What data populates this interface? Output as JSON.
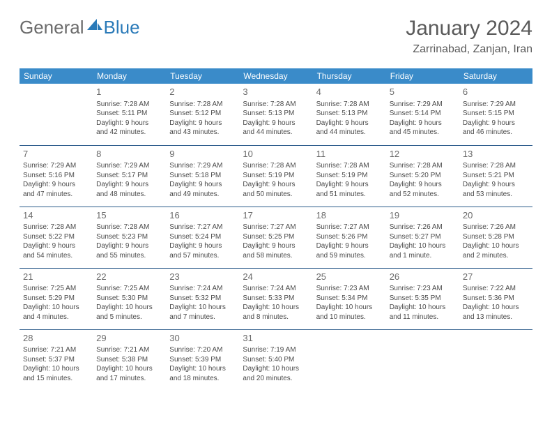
{
  "logo": {
    "part1": "General",
    "part2": "Blue"
  },
  "title": "January 2024",
  "location": "Zarrinabad, Zanjan, Iran",
  "day_headers": [
    "Sunday",
    "Monday",
    "Tuesday",
    "Wednesday",
    "Thursday",
    "Friday",
    "Saturday"
  ],
  "colors": {
    "header_bg": "#3a8bc9",
    "header_fg": "#ffffff",
    "row_border": "#2a5a8a",
    "logo_gray": "#6b6b6b",
    "logo_blue": "#2a7ab8",
    "text": "#4a4a4a"
  },
  "weeks": [
    [
      {
        "day": "",
        "sunrise": "",
        "sunset": "",
        "daylight1": "",
        "daylight2": ""
      },
      {
        "day": "1",
        "sunrise": "Sunrise: 7:28 AM",
        "sunset": "Sunset: 5:11 PM",
        "daylight1": "Daylight: 9 hours",
        "daylight2": "and 42 minutes."
      },
      {
        "day": "2",
        "sunrise": "Sunrise: 7:28 AM",
        "sunset": "Sunset: 5:12 PM",
        "daylight1": "Daylight: 9 hours",
        "daylight2": "and 43 minutes."
      },
      {
        "day": "3",
        "sunrise": "Sunrise: 7:28 AM",
        "sunset": "Sunset: 5:13 PM",
        "daylight1": "Daylight: 9 hours",
        "daylight2": "and 44 minutes."
      },
      {
        "day": "4",
        "sunrise": "Sunrise: 7:28 AM",
        "sunset": "Sunset: 5:13 PM",
        "daylight1": "Daylight: 9 hours",
        "daylight2": "and 44 minutes."
      },
      {
        "day": "5",
        "sunrise": "Sunrise: 7:29 AM",
        "sunset": "Sunset: 5:14 PM",
        "daylight1": "Daylight: 9 hours",
        "daylight2": "and 45 minutes."
      },
      {
        "day": "6",
        "sunrise": "Sunrise: 7:29 AM",
        "sunset": "Sunset: 5:15 PM",
        "daylight1": "Daylight: 9 hours",
        "daylight2": "and 46 minutes."
      }
    ],
    [
      {
        "day": "7",
        "sunrise": "Sunrise: 7:29 AM",
        "sunset": "Sunset: 5:16 PM",
        "daylight1": "Daylight: 9 hours",
        "daylight2": "and 47 minutes."
      },
      {
        "day": "8",
        "sunrise": "Sunrise: 7:29 AM",
        "sunset": "Sunset: 5:17 PM",
        "daylight1": "Daylight: 9 hours",
        "daylight2": "and 48 minutes."
      },
      {
        "day": "9",
        "sunrise": "Sunrise: 7:29 AM",
        "sunset": "Sunset: 5:18 PM",
        "daylight1": "Daylight: 9 hours",
        "daylight2": "and 49 minutes."
      },
      {
        "day": "10",
        "sunrise": "Sunrise: 7:28 AM",
        "sunset": "Sunset: 5:19 PM",
        "daylight1": "Daylight: 9 hours",
        "daylight2": "and 50 minutes."
      },
      {
        "day": "11",
        "sunrise": "Sunrise: 7:28 AM",
        "sunset": "Sunset: 5:19 PM",
        "daylight1": "Daylight: 9 hours",
        "daylight2": "and 51 minutes."
      },
      {
        "day": "12",
        "sunrise": "Sunrise: 7:28 AM",
        "sunset": "Sunset: 5:20 PM",
        "daylight1": "Daylight: 9 hours",
        "daylight2": "and 52 minutes."
      },
      {
        "day": "13",
        "sunrise": "Sunrise: 7:28 AM",
        "sunset": "Sunset: 5:21 PM",
        "daylight1": "Daylight: 9 hours",
        "daylight2": "and 53 minutes."
      }
    ],
    [
      {
        "day": "14",
        "sunrise": "Sunrise: 7:28 AM",
        "sunset": "Sunset: 5:22 PM",
        "daylight1": "Daylight: 9 hours",
        "daylight2": "and 54 minutes."
      },
      {
        "day": "15",
        "sunrise": "Sunrise: 7:28 AM",
        "sunset": "Sunset: 5:23 PM",
        "daylight1": "Daylight: 9 hours",
        "daylight2": "and 55 minutes."
      },
      {
        "day": "16",
        "sunrise": "Sunrise: 7:27 AM",
        "sunset": "Sunset: 5:24 PM",
        "daylight1": "Daylight: 9 hours",
        "daylight2": "and 57 minutes."
      },
      {
        "day": "17",
        "sunrise": "Sunrise: 7:27 AM",
        "sunset": "Sunset: 5:25 PM",
        "daylight1": "Daylight: 9 hours",
        "daylight2": "and 58 minutes."
      },
      {
        "day": "18",
        "sunrise": "Sunrise: 7:27 AM",
        "sunset": "Sunset: 5:26 PM",
        "daylight1": "Daylight: 9 hours",
        "daylight2": "and 59 minutes."
      },
      {
        "day": "19",
        "sunrise": "Sunrise: 7:26 AM",
        "sunset": "Sunset: 5:27 PM",
        "daylight1": "Daylight: 10 hours",
        "daylight2": "and 1 minute."
      },
      {
        "day": "20",
        "sunrise": "Sunrise: 7:26 AM",
        "sunset": "Sunset: 5:28 PM",
        "daylight1": "Daylight: 10 hours",
        "daylight2": "and 2 minutes."
      }
    ],
    [
      {
        "day": "21",
        "sunrise": "Sunrise: 7:25 AM",
        "sunset": "Sunset: 5:29 PM",
        "daylight1": "Daylight: 10 hours",
        "daylight2": "and 4 minutes."
      },
      {
        "day": "22",
        "sunrise": "Sunrise: 7:25 AM",
        "sunset": "Sunset: 5:30 PM",
        "daylight1": "Daylight: 10 hours",
        "daylight2": "and 5 minutes."
      },
      {
        "day": "23",
        "sunrise": "Sunrise: 7:24 AM",
        "sunset": "Sunset: 5:32 PM",
        "daylight1": "Daylight: 10 hours",
        "daylight2": "and 7 minutes."
      },
      {
        "day": "24",
        "sunrise": "Sunrise: 7:24 AM",
        "sunset": "Sunset: 5:33 PM",
        "daylight1": "Daylight: 10 hours",
        "daylight2": "and 8 minutes."
      },
      {
        "day": "25",
        "sunrise": "Sunrise: 7:23 AM",
        "sunset": "Sunset: 5:34 PM",
        "daylight1": "Daylight: 10 hours",
        "daylight2": "and 10 minutes."
      },
      {
        "day": "26",
        "sunrise": "Sunrise: 7:23 AM",
        "sunset": "Sunset: 5:35 PM",
        "daylight1": "Daylight: 10 hours",
        "daylight2": "and 11 minutes."
      },
      {
        "day": "27",
        "sunrise": "Sunrise: 7:22 AM",
        "sunset": "Sunset: 5:36 PM",
        "daylight1": "Daylight: 10 hours",
        "daylight2": "and 13 minutes."
      }
    ],
    [
      {
        "day": "28",
        "sunrise": "Sunrise: 7:21 AM",
        "sunset": "Sunset: 5:37 PM",
        "daylight1": "Daylight: 10 hours",
        "daylight2": "and 15 minutes."
      },
      {
        "day": "29",
        "sunrise": "Sunrise: 7:21 AM",
        "sunset": "Sunset: 5:38 PM",
        "daylight1": "Daylight: 10 hours",
        "daylight2": "and 17 minutes."
      },
      {
        "day": "30",
        "sunrise": "Sunrise: 7:20 AM",
        "sunset": "Sunset: 5:39 PM",
        "daylight1": "Daylight: 10 hours",
        "daylight2": "and 18 minutes."
      },
      {
        "day": "31",
        "sunrise": "Sunrise: 7:19 AM",
        "sunset": "Sunset: 5:40 PM",
        "daylight1": "Daylight: 10 hours",
        "daylight2": "and 20 minutes."
      },
      {
        "day": "",
        "sunrise": "",
        "sunset": "",
        "daylight1": "",
        "daylight2": ""
      },
      {
        "day": "",
        "sunrise": "",
        "sunset": "",
        "daylight1": "",
        "daylight2": ""
      },
      {
        "day": "",
        "sunrise": "",
        "sunset": "",
        "daylight1": "",
        "daylight2": ""
      }
    ]
  ]
}
